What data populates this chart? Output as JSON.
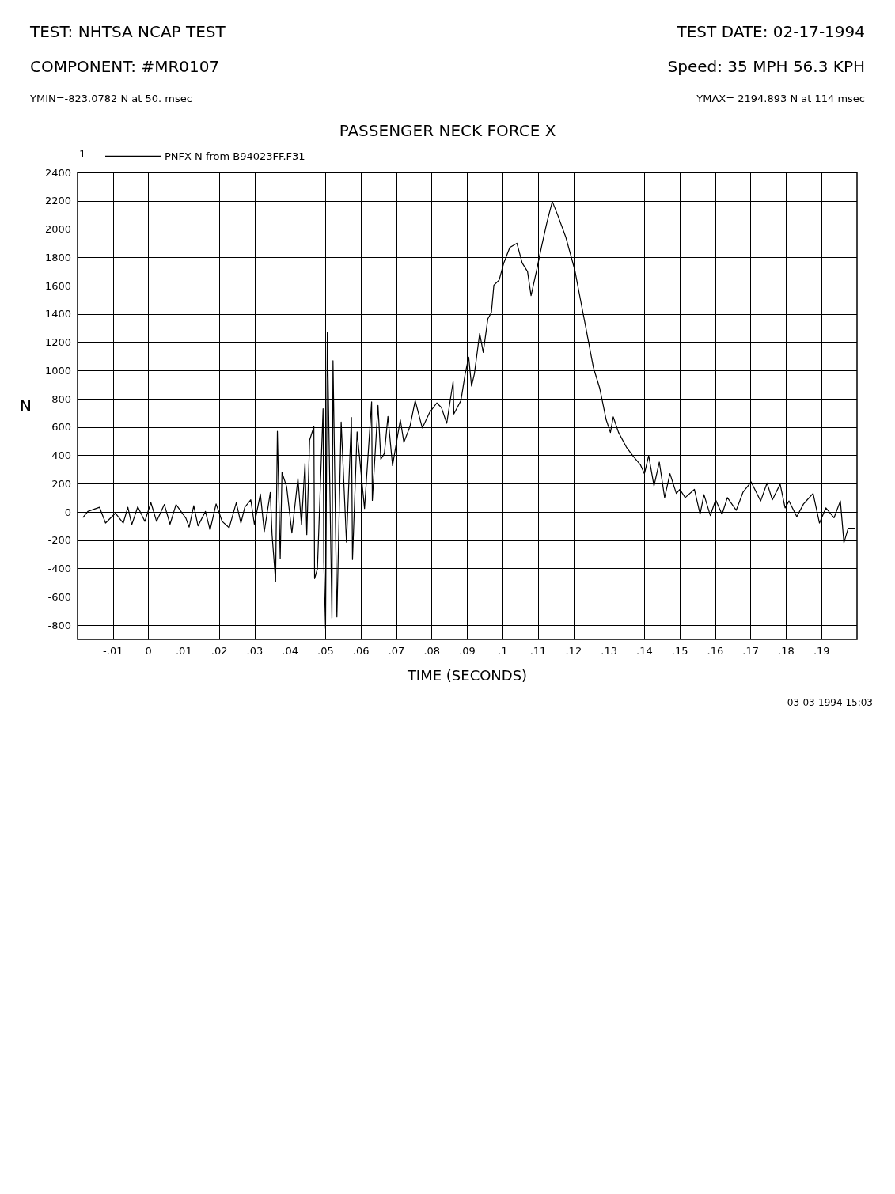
{
  "chart_data": {
    "type": "line",
    "title": "PASSENGER NECK FORCE X",
    "xlabel": "TIME (SECONDS)",
    "ylabel": "N",
    "annotations": [
      "TEST: NHTSA NCAP TEST",
      "TEST DATE: 02-17-1994",
      "COMPONENT: #MR0107",
      "Speed: 35 MPH 56.3 KPH",
      "YMIN=-823.0782 N at 50. msec",
      "YMAX= 2194.893 N at 114 msec",
      "1",
      "03-03-1994 15:03"
    ],
    "xlim": [
      -0.02,
      0.2
    ],
    "xticks": [
      {
        "value": -0.01,
        "label": "-.01"
      },
      0,
      {
        "value": 0.01,
        "label": ".01"
      },
      {
        "value": 0.02,
        "label": ".02"
      },
      {
        "value": 0.03,
        "label": ".03"
      },
      {
        "value": 0.04,
        "label": ".04"
      },
      {
        "value": 0.05,
        "label": ".05"
      },
      {
        "value": 0.06,
        "label": ".06"
      },
      {
        "value": 0.07,
        "label": ".07"
      },
      {
        "value": 0.08,
        "label": ".08"
      },
      {
        "value": 0.09,
        "label": ".09"
      },
      {
        "value": 0.1,
        "label": ".1"
      },
      {
        "value": 0.11,
        "label": ".11"
      },
      {
        "value": 0.12,
        "label": ".12"
      },
      {
        "value": 0.13,
        "label": ".13"
      },
      {
        "value": 0.14,
        "label": ".14"
      },
      {
        "value": 0.15,
        "label": ".15"
      },
      {
        "value": 0.16,
        "label": ".16"
      },
      {
        "value": 0.17,
        "label": ".17"
      },
      {
        "value": 0.18,
        "label": ".18"
      },
      {
        "value": 0.19,
        "label": ".19"
      }
    ],
    "ylim": [
      -900,
      2400
    ],
    "yticks": [
      -800,
      -600,
      -400,
      -200,
      0,
      200,
      400,
      600,
      800,
      1000,
      1200,
      1400,
      1600,
      1800,
      2000,
      2200,
      2400
    ],
    "grid": true,
    "legend": "top left",
    "marker": "none",
    "line_style": "solid",
    "series": [
      {
        "name": "PNFX N from B94023FF.F31",
        "color": "#000000",
        "x": [
          -0.0184,
          -0.0171,
          -0.0138,
          -0.0121,
          -0.0093,
          -0.0071,
          -0.0058,
          -0.0047,
          -0.003,
          -0.001,
          0.0007,
          0.0023,
          0.0045,
          0.0061,
          0.0078,
          0.0106,
          0.0115,
          0.0128,
          0.014,
          0.0161,
          0.0174,
          0.0191,
          0.0208,
          0.0228,
          0.0248,
          0.0261,
          0.0272,
          0.0289,
          0.0299,
          0.0316,
          0.0327,
          0.0344,
          0.0349,
          0.0359,
          0.0364,
          0.0372,
          0.0377,
          0.039,
          0.0405,
          0.0422,
          0.0432,
          0.0442,
          0.0447,
          0.0455,
          0.0467,
          0.0469,
          0.0477,
          0.0493,
          0.0495,
          0.05,
          0.0505,
          0.0518,
          0.0521,
          0.0532,
          0.0544,
          0.0559,
          0.0573,
          0.0576,
          0.0589,
          0.061,
          0.063,
          0.0632,
          0.0648,
          0.0656,
          0.0666,
          0.0676,
          0.0689,
          0.0711,
          0.0721,
          0.0738,
          0.0753,
          0.0773,
          0.0794,
          0.0814,
          0.0827,
          0.0842,
          0.086,
          0.0862,
          0.0882,
          0.0894,
          0.0904,
          0.0912,
          0.092,
          0.0935,
          0.0945,
          0.0958,
          0.0968,
          0.0975,
          0.099,
          0.1003,
          0.102,
          0.104,
          0.1055,
          0.107,
          0.108,
          0.1095,
          0.111,
          0.1125,
          0.114,
          0.1155,
          0.1178,
          0.1204,
          0.121,
          0.1234,
          0.1256,
          0.1274,
          0.1292,
          0.1304,
          0.1312,
          0.1327,
          0.1349,
          0.1367,
          0.1389,
          0.14,
          0.1412,
          0.1427,
          0.1442,
          0.1457,
          0.1472,
          0.149,
          0.15,
          0.1515,
          0.1541,
          0.1557,
          0.1568,
          0.1586,
          0.1601,
          0.1619,
          0.1634,
          0.1659,
          0.1678,
          0.1701,
          0.1728,
          0.1746,
          0.1761,
          0.1783,
          0.1797,
          0.1808,
          0.183,
          0.1849,
          0.1876,
          0.1894,
          0.1912,
          0.1935,
          0.1953,
          0.1963,
          0.1975,
          0.1993
        ],
        "values": [
          -37,
          4,
          33,
          -78,
          -8,
          -78,
          33,
          -90,
          37,
          -66,
          66,
          -66,
          53,
          -86,
          53,
          -45,
          -107,
          45,
          -98,
          4,
          -127,
          57,
          -66,
          -111,
          66,
          -78,
          33,
          86,
          -86,
          127,
          -139,
          139,
          -160,
          -490,
          570,
          -332,
          279,
          180,
          -148,
          238,
          -90,
          344,
          -160,
          508,
          603,
          -471,
          -402,
          730,
          -353,
          -823,
          1271,
          -750,
          1070,
          -742,
          636,
          -213,
          668,
          -336,
          566,
          25,
          779,
          82,
          754,
          373,
          414,
          676,
          328,
          652,
          492,
          603,
          787,
          594,
          705,
          771,
          738,
          627,
          922,
          693,
          787,
          976,
          1095,
          890,
          976,
          1263,
          1128,
          1365,
          1410,
          1603,
          1640,
          1760,
          1870,
          1900,
          1760,
          1700,
          1530,
          1700,
          1880,
          2050,
          2195,
          2100,
          1943,
          1705,
          1624,
          1312,
          1021,
          873,
          652,
          562,
          672,
          562,
          459,
          398,
          332,
          271,
          398,
          184,
          353,
          102,
          271,
          131,
          160,
          102,
          160,
          -16,
          123,
          -25,
          86,
          -16,
          102,
          12,
          139,
          213,
          78,
          205,
          86,
          197,
          29,
          78,
          -33,
          57,
          131,
          -78,
          29,
          -41,
          78,
          -217,
          -115,
          -115
        ]
      }
    ]
  }
}
